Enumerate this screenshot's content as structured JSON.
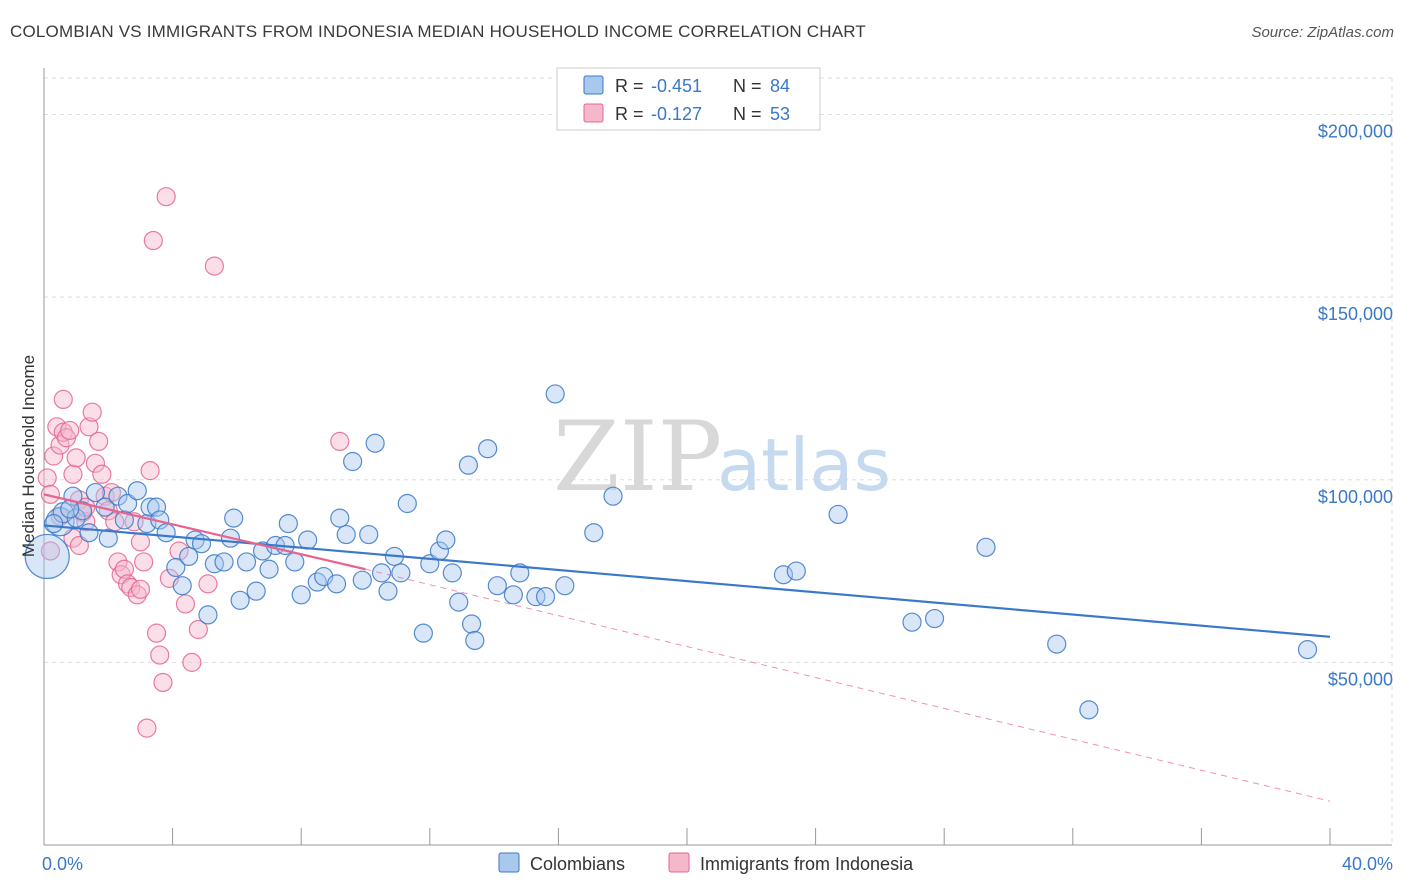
{
  "title": "COLOMBIAN VS IMMIGRANTS FROM INDONESIA MEDIAN HOUSEHOLD INCOME CORRELATION CHART",
  "source": "Source: ZipAtlas.com",
  "watermark": {
    "zip": "ZIP",
    "atlas": "atlas"
  },
  "colors": {
    "blue": "#3a78c9",
    "blue_fill": "#a9c8ee",
    "pink": "#e8648f",
    "pink_fill": "#f5b8cb",
    "grid": "#dddddd"
  },
  "chart_data": {
    "type": "scatter",
    "title": "COLOMBIAN VS IMMIGRANTS FROM INDONESIA MEDIAN HOUSEHOLD INCOME CORRELATION CHART",
    "xlabel": "",
    "ylabel": "Median Household Income",
    "xlim": [
      0,
      40
    ],
    "ylim": [
      0,
      210000
    ],
    "x_tick_labels": [
      "0.0%",
      "40.0%"
    ],
    "y_ticks": [
      {
        "value": 50000,
        "label": "$50,000"
      },
      {
        "value": 100000,
        "label": "$100,000"
      },
      {
        "value": 150000,
        "label": "$150,000"
      },
      {
        "value": 200000,
        "label": "$200,000"
      }
    ],
    "legend": [
      {
        "r_label": "R = ",
        "r_value": "-0.451",
        "n_label": "N = ",
        "n_value": "84"
      },
      {
        "r_label": "R = ",
        "r_value": "-0.127",
        "n_label": "N = ",
        "n_value": "53"
      }
    ],
    "series": [
      {
        "name": "Colombians",
        "color": "#3a78c9",
        "trend": {
          "x": [
            0,
            40
          ],
          "y": [
            87500,
            57000
          ]
        },
        "points": [
          {
            "x": 0.1,
            "y": 79000,
            "r": 22
          },
          {
            "x": 0.5,
            "y": 88500,
            "r": 14
          },
          {
            "x": 0.6,
            "y": 91000,
            "r": 10
          },
          {
            "x": 0.9,
            "y": 95500,
            "r": 9
          },
          {
            "x": 1.0,
            "y": 89500,
            "r": 9
          },
          {
            "x": 1.2,
            "y": 91500,
            "r": 9
          },
          {
            "x": 1.4,
            "y": 85500,
            "r": 9
          },
          {
            "x": 1.6,
            "y": 96500,
            "r": 9
          },
          {
            "x": 1.9,
            "y": 92500,
            "r": 9
          },
          {
            "x": 2.3,
            "y": 95500,
            "r": 9
          },
          {
            "x": 2.5,
            "y": 89000,
            "r": 9
          },
          {
            "x": 2.6,
            "y": 93500,
            "r": 9
          },
          {
            "x": 2.9,
            "y": 97000,
            "r": 9
          },
          {
            "x": 3.2,
            "y": 88000,
            "r": 9
          },
          {
            "x": 3.3,
            "y": 92500,
            "r": 9
          },
          {
            "x": 3.5,
            "y": 92500,
            "r": 9
          },
          {
            "x": 3.6,
            "y": 89000,
            "r": 9
          },
          {
            "x": 3.8,
            "y": 85500,
            "r": 9
          },
          {
            "x": 4.1,
            "y": 76000,
            "r": 9
          },
          {
            "x": 4.3,
            "y": 71000,
            "r": 9
          },
          {
            "x": 4.5,
            "y": 79000,
            "r": 9
          },
          {
            "x": 4.7,
            "y": 83500,
            "r": 9
          },
          {
            "x": 4.9,
            "y": 82500,
            "r": 9
          },
          {
            "x": 5.1,
            "y": 63000,
            "r": 9
          },
          {
            "x": 5.3,
            "y": 77000,
            "r": 9
          },
          {
            "x": 5.6,
            "y": 77500,
            "r": 9
          },
          {
            "x": 5.8,
            "y": 84000,
            "r": 9
          },
          {
            "x": 5.9,
            "y": 89500,
            "r": 9
          },
          {
            "x": 6.1,
            "y": 67000,
            "r": 9
          },
          {
            "x": 6.3,
            "y": 77500,
            "r": 9
          },
          {
            "x": 6.6,
            "y": 69500,
            "r": 9
          },
          {
            "x": 6.8,
            "y": 80500,
            "r": 9
          },
          {
            "x": 7.0,
            "y": 75500,
            "r": 9
          },
          {
            "x": 7.2,
            "y": 82000,
            "r": 9
          },
          {
            "x": 7.5,
            "y": 82000,
            "r": 9
          },
          {
            "x": 7.8,
            "y": 77500,
            "r": 9
          },
          {
            "x": 7.6,
            "y": 88000,
            "r": 9
          },
          {
            "x": 8.0,
            "y": 68500,
            "r": 9
          },
          {
            "x": 8.2,
            "y": 83500,
            "r": 9
          },
          {
            "x": 8.5,
            "y": 72000,
            "r": 9
          },
          {
            "x": 8.7,
            "y": 73500,
            "r": 9
          },
          {
            "x": 9.1,
            "y": 71500,
            "r": 9
          },
          {
            "x": 9.2,
            "y": 89500,
            "r": 9
          },
          {
            "x": 9.4,
            "y": 85000,
            "r": 9
          },
          {
            "x": 9.6,
            "y": 105000,
            "r": 9
          },
          {
            "x": 9.9,
            "y": 72500,
            "r": 9
          },
          {
            "x": 10.1,
            "y": 85000,
            "r": 9
          },
          {
            "x": 10.3,
            "y": 110000,
            "r": 9
          },
          {
            "x": 10.5,
            "y": 74500,
            "r": 9
          },
          {
            "x": 10.7,
            "y": 69500,
            "r": 9
          },
          {
            "x": 10.9,
            "y": 79000,
            "r": 9
          },
          {
            "x": 11.1,
            "y": 74500,
            "r": 9
          },
          {
            "x": 11.3,
            "y": 93500,
            "r": 9
          },
          {
            "x": 11.8,
            "y": 58000,
            "r": 9
          },
          {
            "x": 12.0,
            "y": 77000,
            "r": 9
          },
          {
            "x": 12.3,
            "y": 80500,
            "r": 9
          },
          {
            "x": 12.5,
            "y": 83500,
            "r": 9
          },
          {
            "x": 12.7,
            "y": 74500,
            "r": 9
          },
          {
            "x": 12.9,
            "y": 66500,
            "r": 9
          },
          {
            "x": 13.2,
            "y": 104000,
            "r": 9
          },
          {
            "x": 13.3,
            "y": 60500,
            "r": 9
          },
          {
            "x": 13.4,
            "y": 56000,
            "r": 9
          },
          {
            "x": 13.8,
            "y": 108500,
            "r": 9
          },
          {
            "x": 14.1,
            "y": 71000,
            "r": 9
          },
          {
            "x": 14.6,
            "y": 68500,
            "r": 9
          },
          {
            "x": 14.8,
            "y": 74500,
            "r": 9
          },
          {
            "x": 15.3,
            "y": 68000,
            "r": 9
          },
          {
            "x": 15.6,
            "y": 68000,
            "r": 9
          },
          {
            "x": 15.9,
            "y": 123500,
            "r": 9
          },
          {
            "x": 16.2,
            "y": 71000,
            "r": 9
          },
          {
            "x": 17.1,
            "y": 85500,
            "r": 9
          },
          {
            "x": 17.7,
            "y": 95500,
            "r": 9
          },
          {
            "x": 23.0,
            "y": 74000,
            "r": 9
          },
          {
            "x": 23.4,
            "y": 75000,
            "r": 9
          },
          {
            "x": 24.7,
            "y": 90500,
            "r": 9
          },
          {
            "x": 27.0,
            "y": 61000,
            "r": 9
          },
          {
            "x": 27.7,
            "y": 62000,
            "r": 9
          },
          {
            "x": 29.3,
            "y": 81500,
            "r": 9
          },
          {
            "x": 31.5,
            "y": 55000,
            "r": 9
          },
          {
            "x": 32.5,
            "y": 37000,
            "r": 9
          },
          {
            "x": 39.3,
            "y": 53500,
            "r": 9
          },
          {
            "x": 0.3,
            "y": 88000,
            "r": 9
          },
          {
            "x": 0.8,
            "y": 92000,
            "r": 9
          },
          {
            "x": 2.0,
            "y": 84000,
            "r": 9
          }
        ]
      },
      {
        "name": "Immigrants from Indonesia",
        "color": "#e8648f",
        "trend": {
          "x": [
            0,
            10
          ],
          "y": [
            96000,
            75500
          ]
        },
        "trend_dashed": {
          "x": [
            10,
            40
          ],
          "y": [
            75500,
            12000
          ]
        },
        "points": [
          {
            "x": 0.1,
            "y": 100500,
            "r": 9
          },
          {
            "x": 0.2,
            "y": 96000,
            "r": 9
          },
          {
            "x": 0.3,
            "y": 106500,
            "r": 9
          },
          {
            "x": 0.4,
            "y": 114500,
            "r": 9
          },
          {
            "x": 0.5,
            "y": 109500,
            "r": 9
          },
          {
            "x": 0.6,
            "y": 113000,
            "r": 9
          },
          {
            "x": 0.6,
            "y": 122000,
            "r": 9
          },
          {
            "x": 0.7,
            "y": 111500,
            "r": 9
          },
          {
            "x": 0.8,
            "y": 113500,
            "r": 9
          },
          {
            "x": 0.9,
            "y": 101500,
            "r": 9
          },
          {
            "x": 1.0,
            "y": 106000,
            "r": 9
          },
          {
            "x": 1.1,
            "y": 94500,
            "r": 9
          },
          {
            "x": 1.2,
            "y": 91000,
            "r": 9
          },
          {
            "x": 1.3,
            "y": 88500,
            "r": 9
          },
          {
            "x": 1.4,
            "y": 114500,
            "r": 9
          },
          {
            "x": 1.5,
            "y": 118500,
            "r": 9
          },
          {
            "x": 1.6,
            "y": 104500,
            "r": 9
          },
          {
            "x": 1.7,
            "y": 110500,
            "r": 9
          },
          {
            "x": 1.8,
            "y": 101500,
            "r": 9
          },
          {
            "x": 1.9,
            "y": 95500,
            "r": 9
          },
          {
            "x": 2.0,
            "y": 91500,
            "r": 9
          },
          {
            "x": 2.2,
            "y": 88500,
            "r": 9
          },
          {
            "x": 2.3,
            "y": 77500,
            "r": 9
          },
          {
            "x": 2.4,
            "y": 74000,
            "r": 9
          },
          {
            "x": 2.5,
            "y": 75500,
            "r": 9
          },
          {
            "x": 2.6,
            "y": 71500,
            "r": 9
          },
          {
            "x": 2.7,
            "y": 70500,
            "r": 9
          },
          {
            "x": 2.9,
            "y": 68500,
            "r": 9
          },
          {
            "x": 3.0,
            "y": 70000,
            "r": 9
          },
          {
            "x": 3.1,
            "y": 77500,
            "r": 9
          },
          {
            "x": 3.3,
            "y": 102500,
            "r": 9
          },
          {
            "x": 3.5,
            "y": 58000,
            "r": 9
          },
          {
            "x": 3.6,
            "y": 52000,
            "r": 9
          },
          {
            "x": 3.7,
            "y": 44500,
            "r": 9
          },
          {
            "x": 3.9,
            "y": 73000,
            "r": 9
          },
          {
            "x": 4.2,
            "y": 80500,
            "r": 9
          },
          {
            "x": 4.4,
            "y": 66000,
            "r": 9
          },
          {
            "x": 4.6,
            "y": 50000,
            "r": 9
          },
          {
            "x": 4.8,
            "y": 59000,
            "r": 9
          },
          {
            "x": 5.1,
            "y": 71500,
            "r": 9
          },
          {
            "x": 5.3,
            "y": 158500,
            "r": 9
          },
          {
            "x": 3.8,
            "y": 177500,
            "r": 9
          },
          {
            "x": 3.4,
            "y": 165500,
            "r": 9
          },
          {
            "x": 3.2,
            "y": 32000,
            "r": 9
          },
          {
            "x": 9.2,
            "y": 110500,
            "r": 9
          },
          {
            "x": 0.2,
            "y": 80500,
            "r": 9
          },
          {
            "x": 0.5,
            "y": 90000,
            "r": 9
          },
          {
            "x": 0.9,
            "y": 84000,
            "r": 9
          },
          {
            "x": 1.1,
            "y": 82000,
            "r": 9
          },
          {
            "x": 1.3,
            "y": 92500,
            "r": 9
          },
          {
            "x": 2.1,
            "y": 96500,
            "r": 9
          },
          {
            "x": 2.8,
            "y": 88500,
            "r": 9
          },
          {
            "x": 3.0,
            "y": 83000,
            "r": 9
          }
        ]
      }
    ]
  }
}
